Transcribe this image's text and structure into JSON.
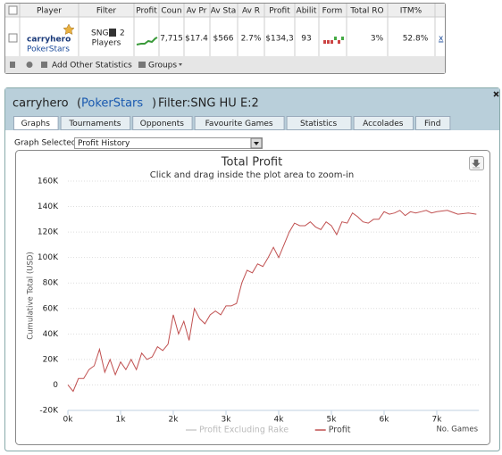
{
  "table": {
    "headers": [
      "Player",
      "Filter",
      "Profit",
      "Coun",
      "Av Pr",
      "Av Sta",
      "Av R",
      "Profit",
      "Abilit",
      "Form",
      "Total RO",
      "ITM%"
    ],
    "row": {
      "player": "carryhero",
      "site": "PokerStars",
      "filter": [
        "SNG",
        "2",
        "Players"
      ],
      "cells": [
        "7,715",
        "$17.4",
        "$566",
        "2.7%",
        "$134,3",
        "93",
        "3%",
        "52.8%"
      ],
      "action": "x"
    },
    "footer": {
      "add": "Add Other Statistics",
      "groups": "Groups"
    }
  },
  "panel": {
    "title_name": "carryhero",
    "title_site": "PokerStars",
    "title_filter": "Filter:SNG HU E:2",
    "tabs": [
      "Graphs",
      "Tournaments",
      "Opponents",
      "Favourite Games",
      "Statistics",
      "Accolades",
      "Find"
    ],
    "graph_label": "Graph Selected:",
    "graph_selected": "Profit History"
  },
  "chart": {
    "type": "line",
    "title": "Total Profit",
    "subtitle": "Click and drag inside the plot area to zoom-in",
    "y_label": "Cumulative Total (USD)",
    "x_label": "No. Games",
    "xlim": [
      0,
      7800
    ],
    "xticks": [
      {
        "value": 0,
        "label": "0k"
      },
      {
        "value": 1000,
        "label": "1k"
      },
      {
        "value": 2000,
        "label": "2k"
      },
      {
        "value": 3000,
        "label": "3k"
      },
      {
        "value": 4000,
        "label": "4k"
      },
      {
        "value": 5000,
        "label": "5k"
      },
      {
        "value": 6000,
        "label": "6k"
      },
      {
        "value": 7000,
        "label": "7k"
      }
    ],
    "ylim": [
      -20000,
      160000
    ],
    "yticks": [
      {
        "value": -20000,
        "label": "-20K"
      },
      0,
      {
        "value": 20000,
        "label": "20K"
      },
      {
        "value": 40000,
        "label": "40K"
      },
      {
        "value": 60000,
        "label": "60K"
      },
      {
        "value": 80000,
        "label": "80K"
      },
      {
        "value": 100000,
        "label": "100K"
      },
      {
        "value": 120000,
        "label": "120K"
      },
      {
        "value": 140000,
        "label": "140K"
      },
      {
        "value": 160000,
        "label": "160K"
      }
    ],
    "grid": true,
    "legend": [
      {
        "name": "Profit Excluding Rake",
        "color": "#cccccc"
      },
      {
        "name": "Profit",
        "color": "#c05050"
      }
    ],
    "x": [
      0,
      100,
      200,
      300,
      400,
      500,
      600,
      700,
      800,
      900,
      1000,
      1100,
      1200,
      1300,
      1400,
      1500,
      1600,
      1700,
      1800,
      1900,
      2000,
      2100,
      2200,
      2300,
      2400,
      2500,
      2600,
      2700,
      2800,
      2900,
      3000,
      3100,
      3200,
      3300,
      3400,
      3500,
      3600,
      3700,
      3800,
      3900,
      4000,
      4100,
      4200,
      4300,
      4400,
      4500,
      4600,
      4700,
      4800,
      4900,
      5000,
      5100,
      5200,
      5300,
      5400,
      5500,
      5600,
      5700,
      5800,
      5900,
      6000,
      6100,
      6200,
      6300,
      6400,
      6500,
      6600,
      6700,
      6800,
      6900,
      7000,
      7200,
      7400,
      7600,
      7750
    ],
    "series": [
      {
        "name": "Profit",
        "color": "#c05050",
        "values": [
          0,
          -5000,
          5000,
          5000,
          12000,
          15000,
          28000,
          10000,
          20000,
          8000,
          18000,
          12000,
          20000,
          12000,
          25000,
          20000,
          22000,
          30000,
          27000,
          32000,
          55000,
          40000,
          50000,
          35000,
          60000,
          52000,
          48000,
          55000,
          58000,
          55000,
          62000,
          62000,
          64000,
          80000,
          90000,
          88000,
          95000,
          93000,
          100000,
          108000,
          100000,
          110000,
          120000,
          127000,
          125000,
          125000,
          128000,
          124000,
          122000,
          128000,
          125000,
          118000,
          128000,
          127000,
          135000,
          132000,
          128000,
          127000,
          130000,
          130000,
          136000,
          134000,
          135000,
          137000,
          133000,
          136000,
          135000,
          136000,
          137000,
          135000,
          136000,
          137000,
          134000,
          135000,
          134000
        ]
      }
    ]
  }
}
